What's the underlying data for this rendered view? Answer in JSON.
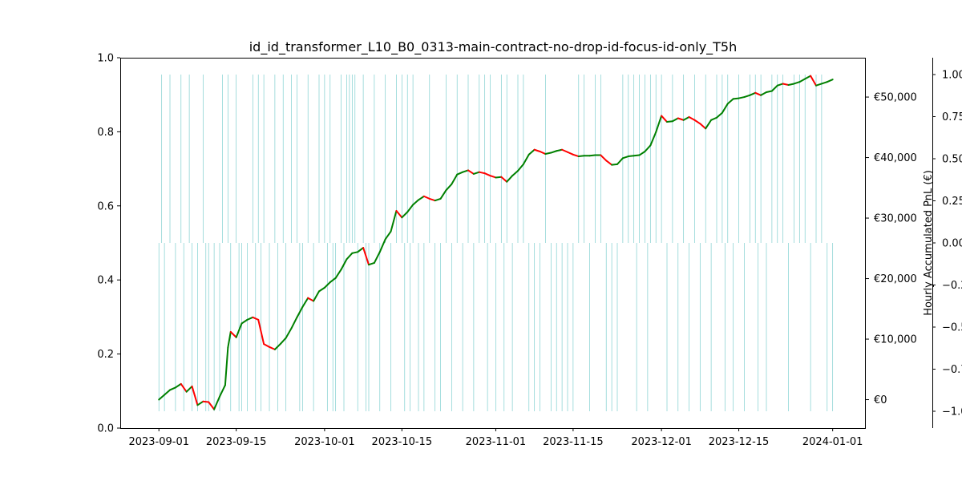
{
  "chart_data": {
    "type": "line",
    "title": "id_id_transformer_L10_B0_0313-main-contract-no-drop-id-focus-id-only_T5h",
    "x_axis": {
      "tick_labels": [
        "2023-09-01",
        "2023-09-15",
        "2023-10-01",
        "2023-10-15",
        "2023-11-01",
        "2023-11-15",
        "2023-12-01",
        "2023-12-15",
        "2024-01-01"
      ],
      "tick_dates": [
        "2023-09-01",
        "2023-09-15",
        "2023-10-01",
        "2023-10-15",
        "2023-11-01",
        "2023-11-15",
        "2023-12-01",
        "2023-12-15",
        "2024-01-01"
      ],
      "range": [
        "2023-08-25",
        "2024-01-07"
      ]
    },
    "left_axis": {
      "range": [
        0,
        1
      ],
      "tick_values": [
        0.0,
        0.2,
        0.4,
        0.6,
        0.8,
        1.0
      ],
      "tick_labels": [
        "0.0",
        "0.2",
        "0.4",
        "0.6",
        "0.8",
        "1.0"
      ]
    },
    "pnl_axis": {
      "label": "Hourly Accumulated PnL (€)",
      "range": [
        -4700,
        56500
      ],
      "tick_values": [
        0,
        10000,
        20000,
        30000,
        40000,
        50000
      ],
      "tick_labels": [
        "€0",
        "€10,000",
        "€20,000",
        "€30,000",
        "€40,000",
        "€50,000"
      ]
    },
    "signal_axis": {
      "range": [
        -1.1,
        1.1
      ],
      "tick_values": [
        1.0,
        0.75,
        0.5,
        0.25,
        0.0,
        -0.25,
        -0.5,
        -0.75,
        -1.0
      ],
      "tick_labels": [
        "1.00",
        "0.75",
        "0.50",
        "0.25",
        "0.00",
        "−0.25",
        "−0.50",
        "−0.75",
        "−1.00"
      ]
    },
    "series": [
      {
        "color_up": "#008000",
        "color_down": "#ff0000",
        "points": [
          [
            "2023-09-01",
            0
          ],
          [
            "2023-09-02",
            800
          ],
          [
            "2023-09-03",
            1600
          ],
          [
            "2023-09-04",
            2000
          ],
          [
            "2023-09-05",
            2600
          ],
          [
            "2023-09-06",
            1300
          ],
          [
            "2023-09-07",
            2200
          ],
          [
            "2023-09-08",
            -900
          ],
          [
            "2023-09-09",
            -300
          ],
          [
            "2023-09-10",
            -400
          ],
          [
            "2023-09-11",
            -1600
          ],
          [
            "2023-09-12",
            500
          ],
          [
            "2023-09-13",
            2400
          ],
          [
            "2023-09-13T12:00",
            8600
          ],
          [
            "2023-09-14",
            11200
          ],
          [
            "2023-09-15",
            10300
          ],
          [
            "2023-09-16",
            12600
          ],
          [
            "2023-09-17",
            13200
          ],
          [
            "2023-09-18",
            13600
          ],
          [
            "2023-09-19",
            13200
          ],
          [
            "2023-09-20",
            9200
          ],
          [
            "2023-09-21",
            8700
          ],
          [
            "2023-09-22",
            8300
          ],
          [
            "2023-09-23",
            9200
          ],
          [
            "2023-09-24",
            10200
          ],
          [
            "2023-09-25",
            11800
          ],
          [
            "2023-09-26",
            13600
          ],
          [
            "2023-09-27",
            15300
          ],
          [
            "2023-09-28",
            16800
          ],
          [
            "2023-09-29",
            16300
          ],
          [
            "2023-09-30",
            17900
          ],
          [
            "2023-10-01",
            18500
          ],
          [
            "2023-10-02",
            19400
          ],
          [
            "2023-10-03",
            20100
          ],
          [
            "2023-10-04",
            21500
          ],
          [
            "2023-10-05",
            23200
          ],
          [
            "2023-10-06",
            24200
          ],
          [
            "2023-10-07",
            24400
          ],
          [
            "2023-10-08",
            25100
          ],
          [
            "2023-10-09",
            22300
          ],
          [
            "2023-10-10",
            22600
          ],
          [
            "2023-10-11",
            24400
          ],
          [
            "2023-10-12",
            26500
          ],
          [
            "2023-10-13",
            27800
          ],
          [
            "2023-10-14",
            31200
          ],
          [
            "2023-10-15",
            30100
          ],
          [
            "2023-10-16",
            31000
          ],
          [
            "2023-10-17",
            32200
          ],
          [
            "2023-10-18",
            33000
          ],
          [
            "2023-10-19",
            33600
          ],
          [
            "2023-10-20",
            33200
          ],
          [
            "2023-10-21",
            32900
          ],
          [
            "2023-10-22",
            33200
          ],
          [
            "2023-10-23",
            34600
          ],
          [
            "2023-10-24",
            35600
          ],
          [
            "2023-10-25",
            37200
          ],
          [
            "2023-10-26",
            37600
          ],
          [
            "2023-10-27",
            37900
          ],
          [
            "2023-10-28",
            37300
          ],
          [
            "2023-10-29",
            37600
          ],
          [
            "2023-10-30",
            37400
          ],
          [
            "2023-10-31",
            37000
          ],
          [
            "2023-11-01",
            36700
          ],
          [
            "2023-11-02",
            36800
          ],
          [
            "2023-11-03",
            36000
          ],
          [
            "2023-11-04",
            37000
          ],
          [
            "2023-11-05",
            37800
          ],
          [
            "2023-11-06",
            38900
          ],
          [
            "2023-11-07",
            40500
          ],
          [
            "2023-11-08",
            41300
          ],
          [
            "2023-11-09",
            41000
          ],
          [
            "2023-11-10",
            40600
          ],
          [
            "2023-11-11",
            40800
          ],
          [
            "2023-11-12",
            41100
          ],
          [
            "2023-11-13",
            41300
          ],
          [
            "2023-11-14",
            40900
          ],
          [
            "2023-11-15",
            40500
          ],
          [
            "2023-11-16",
            40200
          ],
          [
            "2023-11-17",
            40300
          ],
          [
            "2023-11-18",
            40300
          ],
          [
            "2023-11-19",
            40400
          ],
          [
            "2023-11-20",
            40400
          ],
          [
            "2023-11-21",
            39500
          ],
          [
            "2023-11-22",
            38800
          ],
          [
            "2023-11-23",
            38900
          ],
          [
            "2023-11-24",
            39900
          ],
          [
            "2023-11-25",
            40200
          ],
          [
            "2023-11-26",
            40300
          ],
          [
            "2023-11-27",
            40400
          ],
          [
            "2023-11-28",
            41000
          ],
          [
            "2023-11-29",
            42000
          ],
          [
            "2023-11-30",
            44200
          ],
          [
            "2023-12-01",
            46900
          ],
          [
            "2023-12-02",
            45900
          ],
          [
            "2023-12-03",
            46000
          ],
          [
            "2023-12-04",
            46500
          ],
          [
            "2023-12-05",
            46200
          ],
          [
            "2023-12-06",
            46700
          ],
          [
            "2023-12-07",
            46200
          ],
          [
            "2023-12-08",
            45600
          ],
          [
            "2023-12-09",
            44800
          ],
          [
            "2023-12-10",
            46200
          ],
          [
            "2023-12-11",
            46600
          ],
          [
            "2023-12-12",
            47400
          ],
          [
            "2023-12-13",
            48900
          ],
          [
            "2023-12-14",
            49700
          ],
          [
            "2023-12-15",
            49800
          ],
          [
            "2023-12-16",
            50000
          ],
          [
            "2023-12-17",
            50300
          ],
          [
            "2023-12-18",
            50700
          ],
          [
            "2023-12-19",
            50300
          ],
          [
            "2023-12-20",
            50800
          ],
          [
            "2023-12-21",
            51000
          ],
          [
            "2023-12-22",
            51900
          ],
          [
            "2023-12-23",
            52200
          ],
          [
            "2023-12-24",
            52000
          ],
          [
            "2023-12-25",
            52200
          ],
          [
            "2023-12-26",
            52500
          ],
          [
            "2023-12-27",
            53000
          ],
          [
            "2023-12-28",
            53500
          ],
          [
            "2023-12-29",
            51900
          ],
          [
            "2023-12-30",
            52200
          ],
          [
            "2023-12-31",
            52500
          ],
          [
            "2024-01-01",
            52900
          ]
        ]
      }
    ],
    "signal_bars": {
      "color": "#7fcfcf",
      "long_dates": [
        "2023-09-01T12:00",
        "2023-09-03",
        "2023-09-05",
        "2023-09-06T12:00",
        "2023-09-09",
        "2023-09-12T12:00",
        "2023-09-13T12:00",
        "2023-09-15",
        "2023-09-18",
        "2023-09-19",
        "2023-09-20",
        "2023-09-22",
        "2023-09-23T12:00",
        "2023-09-25",
        "2023-09-26",
        "2023-09-28",
        "2023-09-30",
        "2023-10-01",
        "2023-10-02",
        "2023-10-04",
        "2023-10-05",
        "2023-10-05T12:00",
        "2023-10-06",
        "2023-10-06T12:00",
        "2023-10-08",
        "2023-10-10",
        "2023-10-12",
        "2023-10-14",
        "2023-10-15",
        "2023-10-16",
        "2023-10-17",
        "2023-10-20",
        "2023-10-23",
        "2023-10-25",
        "2023-10-27",
        "2023-10-29",
        "2023-10-30",
        "2023-10-31",
        "2023-11-02",
        "2023-11-03",
        "2023-11-05",
        "2023-11-06",
        "2023-11-10",
        "2023-11-16",
        "2023-11-17",
        "2023-11-19",
        "2023-11-20",
        "2023-11-24",
        "2023-11-25",
        "2023-11-26",
        "2023-11-27",
        "2023-11-28",
        "2023-11-29",
        "2023-11-30",
        "2023-12-01",
        "2023-12-03",
        "2023-12-05",
        "2023-12-07",
        "2023-12-09",
        "2023-12-11",
        "2023-12-12",
        "2023-12-13",
        "2023-12-15",
        "2023-12-17",
        "2023-12-18",
        "2023-12-19",
        "2023-12-21",
        "2023-12-22",
        "2023-12-23",
        "2023-12-25",
        "2023-12-26",
        "2023-12-27",
        "2023-12-29",
        "2023-12-30"
      ],
      "short_dates": [
        "2023-09-01",
        "2023-09-02",
        "2023-09-04",
        "2023-09-05T12:00",
        "2023-09-07",
        "2023-09-08",
        "2023-09-09T12:00",
        "2023-09-10",
        "2023-09-11",
        "2023-09-12",
        "2023-09-14",
        "2023-09-15T12:00",
        "2023-09-16",
        "2023-09-17",
        "2023-09-18T12:00",
        "2023-09-19T12:00",
        "2023-09-21",
        "2023-09-22T12:00",
        "2023-09-24",
        "2023-09-26T12:00",
        "2023-09-27",
        "2023-09-29",
        "2023-10-01T12:00",
        "2023-10-02T12:00",
        "2023-10-03",
        "2023-10-04T12:00",
        "2023-10-07",
        "2023-10-08T12:00",
        "2023-10-09",
        "2023-10-11",
        "2023-10-13",
        "2023-10-15T12:00",
        "2023-10-16T12:00",
        "2023-10-18",
        "2023-10-19",
        "2023-10-21",
        "2023-10-22",
        "2023-10-24",
        "2023-10-26",
        "2023-10-28",
        "2023-10-30T12:00",
        "2023-11-01",
        "2023-11-02T12:00",
        "2023-11-04",
        "2023-11-07",
        "2023-11-08",
        "2023-11-09",
        "2023-11-11",
        "2023-11-12",
        "2023-11-13",
        "2023-11-14",
        "2023-11-15",
        "2023-11-18",
        "2023-11-21",
        "2023-11-22",
        "2023-11-23",
        "2023-11-26T12:00",
        "2023-11-28T12:00",
        "2023-12-02",
        "2023-12-04",
        "2023-12-06",
        "2023-12-08",
        "2023-12-10",
        "2023-12-12T12:00",
        "2023-12-14",
        "2023-12-16",
        "2023-12-18T12:00",
        "2023-12-20",
        "2023-12-24",
        "2023-12-28",
        "2023-12-31",
        "2024-01-01"
      ]
    }
  }
}
